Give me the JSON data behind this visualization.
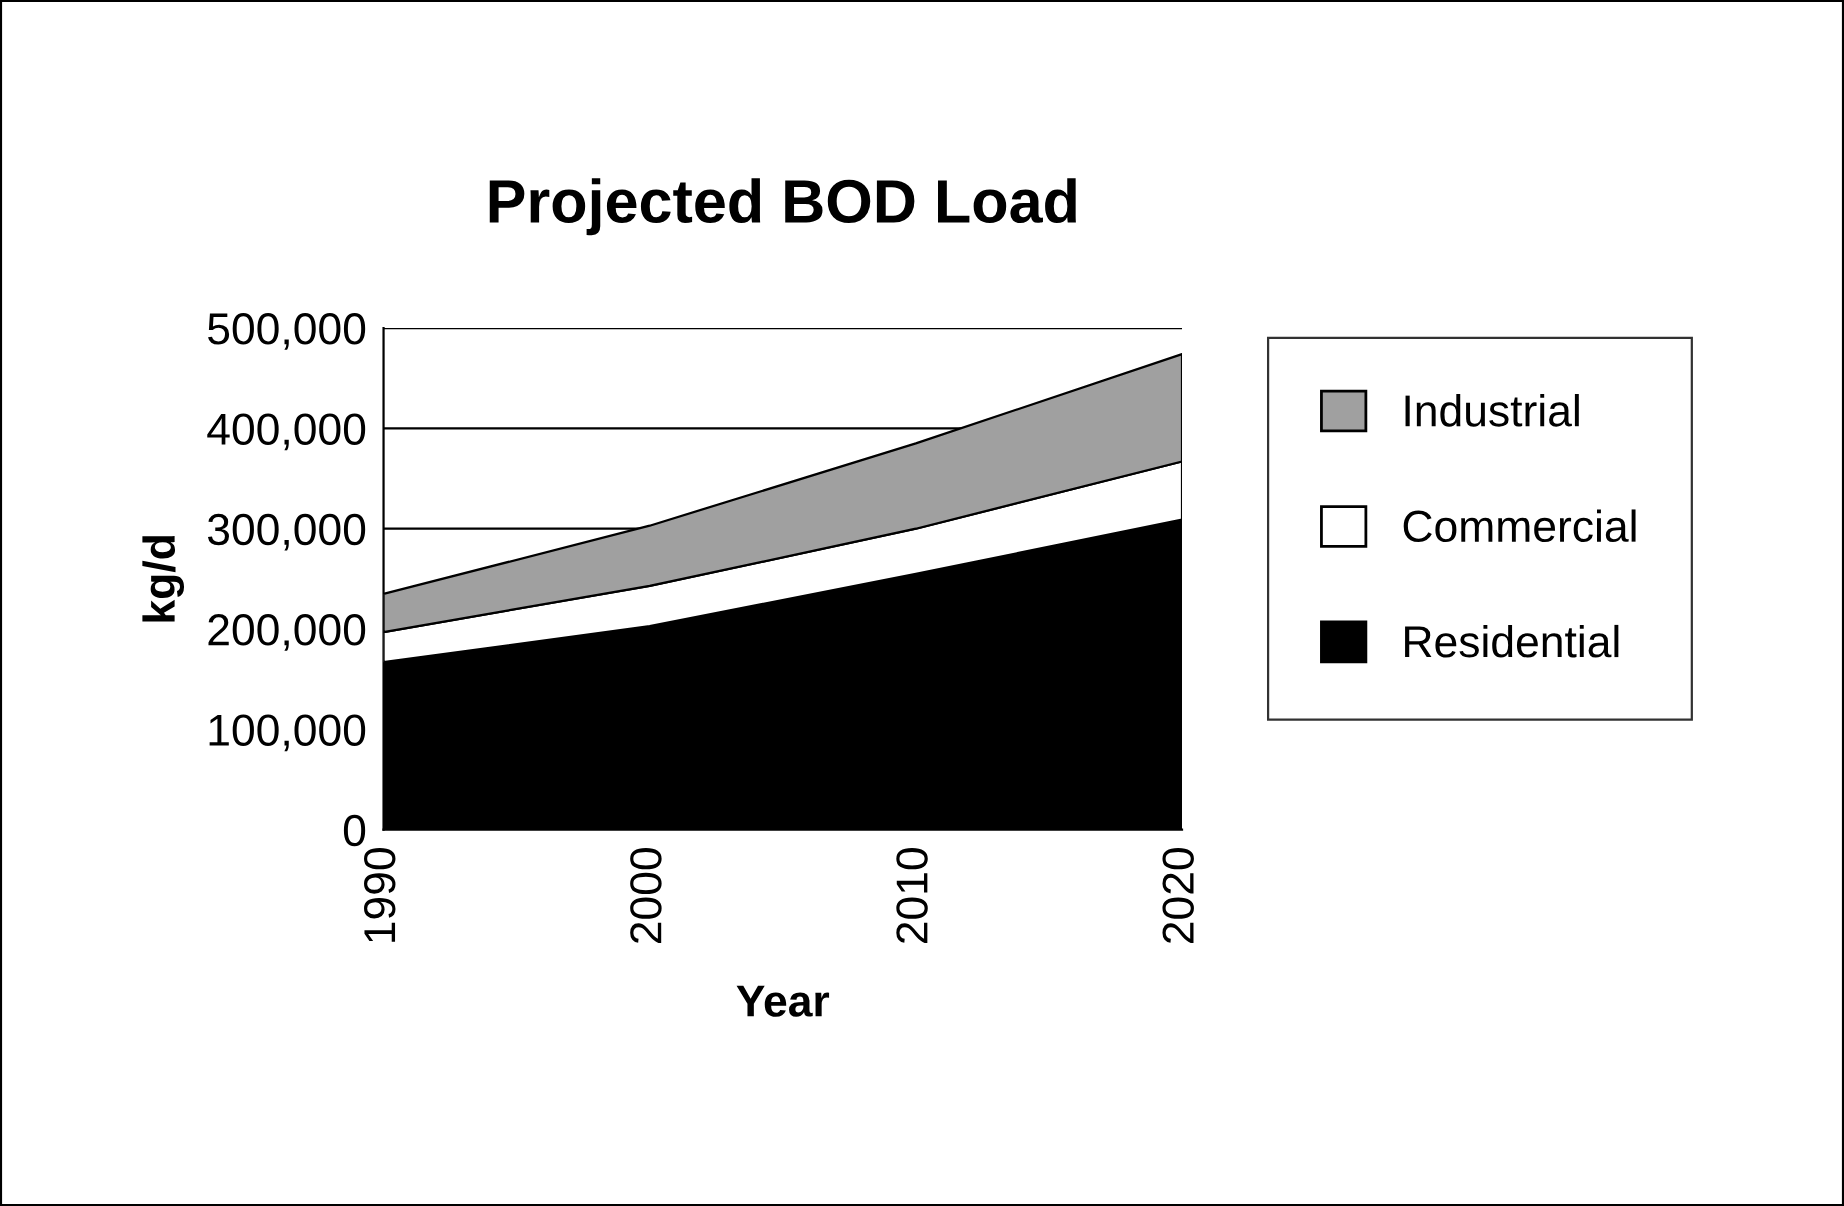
{
  "chart_data": {
    "type": "area",
    "title": "Projected BOD Load",
    "xlabel": "Year",
    "ylabel": "kg/d",
    "x": [
      1990,
      2000,
      2010,
      2020
    ],
    "stacked": true,
    "series": [
      {
        "name": "Residential",
        "color": "#000000",
        "values": [
          167000,
          203000,
          255000,
          309000
        ]
      },
      {
        "name": "Commercial",
        "color": "#ffffff",
        "values": [
          30000,
          40000,
          45000,
          58000
        ]
      },
      {
        "name": "Industrial",
        "color": "#a0a0a0",
        "values": [
          38000,
          60000,
          85000,
          107000
        ]
      }
    ],
    "xlim": [
      1990,
      2020
    ],
    "xticks": [
      1990,
      2000,
      2010,
      2020
    ],
    "ylim": [
      0,
      500000
    ],
    "yticks": [
      0,
      {
        "value": 100000,
        "label": "100,000"
      },
      {
        "value": 200000,
        "label": "200,000"
      },
      {
        "value": 300000,
        "label": "300,000"
      },
      {
        "value": 400000,
        "label": "400,000"
      },
      {
        "value": 500000,
        "label": "500,000"
      }
    ],
    "grid": "y",
    "legend": "right"
  }
}
